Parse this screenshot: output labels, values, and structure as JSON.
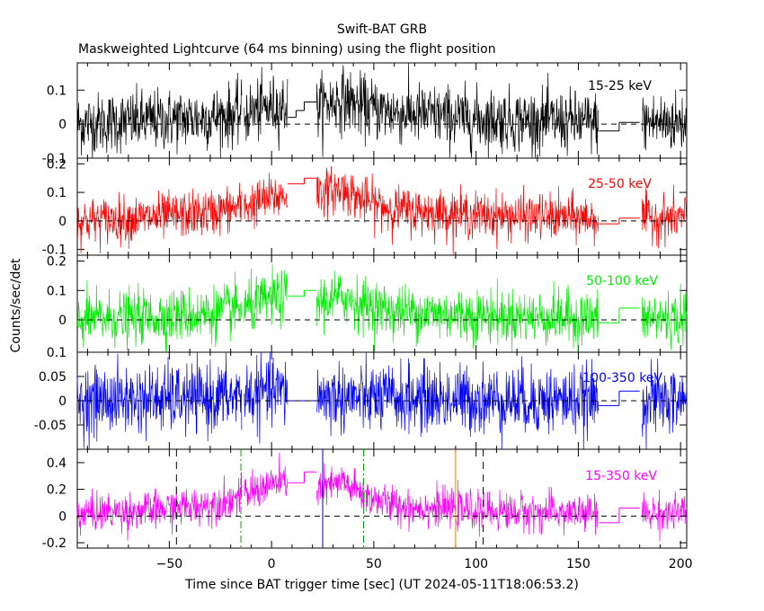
{
  "header": {
    "title": "Swift-BAT GRB",
    "subtitle": "Maskweighted Lightcurve (64 ms binning) using the flight position"
  },
  "axes": {
    "ylabel": "Counts/sec/det",
    "xlabel": "Time since BAT trigger time [sec] (UT 2024-05-11T18:06:53.2)",
    "x_ticks": [
      -50,
      0,
      50,
      100,
      150,
      200
    ]
  },
  "colors": {
    "15-25": "#000000",
    "25-50": "#ff0000",
    "50-100": "#00ee00",
    "100-350": "#0000ff",
    "15-350": "#ff00ff",
    "t90_line": "#000000",
    "t50_line": "#00aa00",
    "peak_blue": "#0000aa",
    "peak_orange": "#e08000"
  },
  "chart_data": [
    {
      "type": "line",
      "band": "15-25 keV",
      "series_color_key": "15-25",
      "xlim": [
        -95,
        203
      ],
      "ylim": [
        -0.1,
        0.18
      ],
      "y_ticks": [
        0.1,
        0,
        -0.1
      ],
      "y_tick_labels": [
        "0.1",
        "0",
        "-0.1"
      ],
      "baseline": 0.02,
      "amplitude": 0.045,
      "profile": [
        [
          -95,
          0.0
        ],
        [
          -60,
          0.01
        ],
        [
          -30,
          0.02
        ],
        [
          -14,
          0.03
        ],
        [
          0,
          0.05
        ],
        [
          8,
          0.055
        ],
        [
          22,
          0.05
        ],
        [
          35,
          0.075
        ],
        [
          45,
          0.05
        ],
        [
          60,
          0.035
        ],
        [
          100,
          0.015
        ],
        [
          155,
          0.005
        ]
      ],
      "steps": [
        [
          8,
          12,
          0.02
        ],
        [
          12,
          16,
          0.04
        ],
        [
          16,
          22,
          0.065
        ],
        [
          160,
          170,
          -0.02
        ],
        [
          170,
          180,
          0.005
        ]
      ],
      "gaps": [
        [
          -14.5,
          -13.5
        ],
        [
          160,
          181
        ]
      ]
    },
    {
      "type": "line",
      "band": "25-50 keV",
      "series_color_key": "25-50",
      "xlim": [
        -95,
        203
      ],
      "ylim": [
        -0.12,
        0.22
      ],
      "y_ticks": [
        0.2,
        0.1,
        0,
        -0.1
      ],
      "y_tick_labels": [
        "0.2",
        "0.1",
        "0",
        "-0.1"
      ],
      "baseline": 0.02,
      "amplitude": 0.04,
      "profile": [
        [
          -95,
          0.0
        ],
        [
          -60,
          0.01
        ],
        [
          -30,
          0.03
        ],
        [
          -14,
          0.05
        ],
        [
          0,
          0.08
        ],
        [
          8,
          0.09
        ],
        [
          22,
          0.1
        ],
        [
          35,
          0.11
        ],
        [
          45,
          0.07
        ],
        [
          60,
          0.04
        ],
        [
          100,
          0.02
        ],
        [
          155,
          0.01
        ]
      ],
      "steps": [
        [
          8,
          16,
          0.13
        ],
        [
          16,
          22,
          0.15
        ],
        [
          160,
          170,
          -0.01
        ],
        [
          170,
          180,
          0.01
        ]
      ],
      "gaps": [
        [
          -14.5,
          -13.5
        ],
        [
          160,
          181
        ]
      ]
    },
    {
      "type": "line",
      "band": "50-100 keV",
      "series_color_key": "50-100",
      "xlim": [
        -95,
        203
      ],
      "ylim": [
        -0.11,
        0.22
      ],
      "y_ticks": [
        0.2,
        0.1,
        0
      ],
      "y_tick_labels": [
        "0.2",
        "0.1",
        "0"
      ],
      "baseline": 0.01,
      "amplitude": 0.045,
      "profile": [
        [
          -95,
          0.0
        ],
        [
          -60,
          0.01
        ],
        [
          -30,
          0.02
        ],
        [
          -14,
          0.04
        ],
        [
          0,
          0.07
        ],
        [
          8,
          0.08
        ],
        [
          22,
          0.06
        ],
        [
          35,
          0.08
        ],
        [
          45,
          0.05
        ],
        [
          60,
          0.03
        ],
        [
          100,
          0.015
        ],
        [
          155,
          0.005
        ]
      ],
      "steps": [
        [
          8,
          16,
          0.08
        ],
        [
          16,
          22,
          0.1
        ],
        [
          160,
          170,
          -0.01
        ],
        [
          170,
          180,
          0.04
        ]
      ],
      "gaps": [
        [
          -14.5,
          -13.5
        ],
        [
          160,
          181
        ]
      ]
    },
    {
      "type": "line",
      "band": "100-350 keV",
      "series_color_key": "100-350",
      "xlim": [
        -95,
        203
      ],
      "ylim": [
        -0.1,
        0.1
      ],
      "y_ticks": [
        0.1,
        0.05,
        0,
        -0.05
      ],
      "y_tick_labels": [
        "0.1",
        "0.05",
        "0",
        "-0.05"
      ],
      "baseline": 0.005,
      "amplitude": 0.035,
      "profile": [
        [
          -95,
          0.0
        ],
        [
          -30,
          0.005
        ],
        [
          -14,
          0.01
        ],
        [
          0,
          0.02
        ],
        [
          8,
          0.02
        ],
        [
          22,
          0.01
        ],
        [
          45,
          0.005
        ],
        [
          155,
          0.0
        ]
      ],
      "steps": [
        [
          8,
          22,
          0.0
        ],
        [
          160,
          170,
          -0.01
        ],
        [
          170,
          180,
          0.02
        ]
      ],
      "gaps": [
        [
          -14.5,
          -13.5
        ],
        [
          160,
          181
        ]
      ]
    },
    {
      "type": "line",
      "band": "15-350 keV",
      "series_color_key": "15-350",
      "xlim": [
        -95,
        203
      ],
      "ylim": [
        -0.24,
        0.5
      ],
      "y_ticks": [
        0.4,
        0.2,
        0,
        -0.2
      ],
      "y_tick_labels": [
        "0.4",
        "0.2",
        "0",
        "-0.2"
      ],
      "baseline": 0.03,
      "amplitude": 0.07,
      "profile": [
        [
          -95,
          0.02
        ],
        [
          -60,
          0.04
        ],
        [
          -30,
          0.09
        ],
        [
          -14,
          0.15
        ],
        [
          0,
          0.24
        ],
        [
          8,
          0.25
        ],
        [
          22,
          0.2
        ],
        [
          35,
          0.25
        ],
        [
          45,
          0.16
        ],
        [
          60,
          0.08
        ],
        [
          100,
          0.04
        ],
        [
          155,
          0.02
        ]
      ],
      "steps": [
        [
          8,
          16,
          0.25
        ],
        [
          16,
          22,
          0.33
        ],
        [
          160,
          170,
          -0.05
        ],
        [
          170,
          180,
          0.06
        ]
      ],
      "gaps": [
        [
          -14.5,
          -13.5
        ],
        [
          160,
          181
        ]
      ],
      "vlines": [
        {
          "x": -46.5,
          "color_key": "t90_line",
          "dash": "8,6"
        },
        {
          "x": 103.5,
          "color_key": "t90_line",
          "dash": "8,6"
        },
        {
          "x": -15,
          "color_key": "t50_line",
          "dash": "8,3,2,3"
        },
        {
          "x": 45,
          "color_key": "t50_line",
          "dash": "8,3,2,3"
        },
        {
          "x": 25,
          "color_key": "peak_blue",
          "dash": ""
        },
        {
          "x": 90,
          "color_key": "peak_orange",
          "dash": ""
        }
      ]
    }
  ]
}
